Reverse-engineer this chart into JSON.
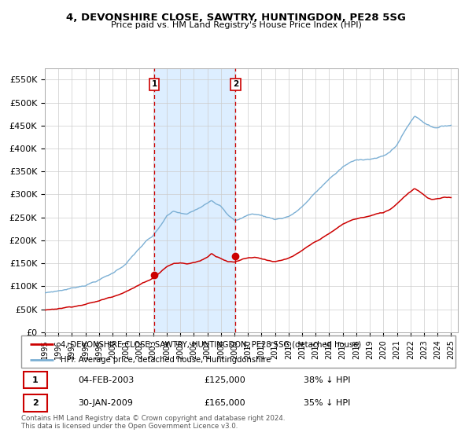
{
  "title": "4, DEVONSHIRE CLOSE, SAWTRY, HUNTINGDON, PE28 5SG",
  "subtitle": "Price paid vs. HM Land Registry's House Price Index (HPI)",
  "legend_line1": "4, DEVONSHIRE CLOSE, SAWTRY, HUNTINGDON, PE28 5SG (detached house)",
  "legend_line2": "HPI: Average price, detached house, Huntingdonshire",
  "transaction1_date": "04-FEB-2003",
  "transaction1_price": 125000,
  "transaction1_pct": "38% ↓ HPI",
  "transaction2_date": "30-JAN-2009",
  "transaction2_price": 165000,
  "transaction2_pct": "35% ↓ HPI",
  "footnote": "Contains HM Land Registry data © Crown copyright and database right 2024.\nThis data is licensed under the Open Government Licence v3.0.",
  "hpi_color": "#7bafd4",
  "price_color": "#cc0000",
  "shading_color": "#ddeeff",
  "marker_color": "#cc0000",
  "dashed_color": "#cc0000",
  "grid_color": "#cccccc",
  "bg_color": "#ffffff",
  "ylim": [
    0,
    575000
  ],
  "ytick_labels": [
    "£0",
    "£50K",
    "£100K",
    "£150K",
    "£200K",
    "£250K",
    "£300K",
    "£350K",
    "£400K",
    "£450K",
    "£500K",
    "£550K"
  ],
  "ytick_vals": [
    0,
    50000,
    100000,
    150000,
    200000,
    250000,
    300000,
    350000,
    400000,
    450000,
    500000,
    550000
  ],
  "transaction1_year": 2003.08,
  "transaction2_year": 2009.08,
  "xlim_start": 1995,
  "xlim_end": 2025.5
}
